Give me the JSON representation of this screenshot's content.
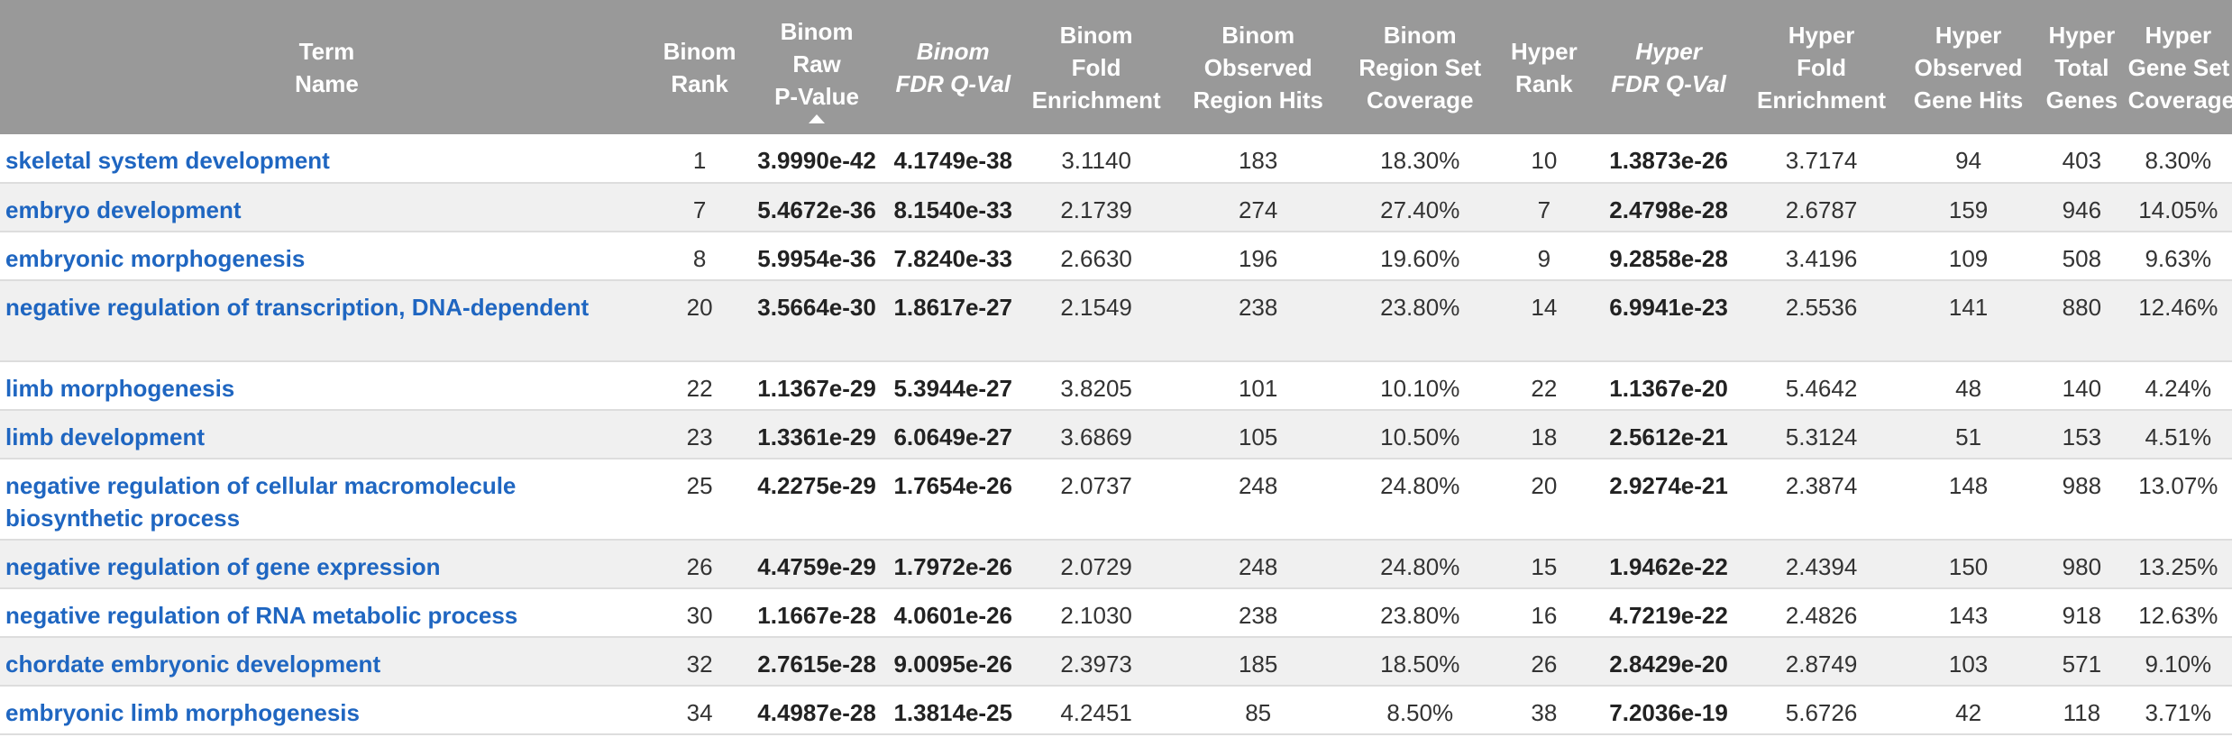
{
  "headers": {
    "term_name": [
      "Term",
      "Name"
    ],
    "binom_rank": [
      "Binom",
      "Rank"
    ],
    "binom_raw_pvalue": [
      "Binom",
      "Raw",
      "P-Value"
    ],
    "binom_fdr_qval": [
      "Binom",
      "FDR Q-Val"
    ],
    "binom_fold_enrichment": [
      "Binom",
      "Fold",
      "Enrichment"
    ],
    "binom_observed_region_hits": [
      "Binom",
      "Observed",
      "Region Hits"
    ],
    "binom_region_set_coverage": [
      "Binom",
      "Region Set",
      "Coverage"
    ],
    "hyper_rank": [
      "Hyper",
      "Rank"
    ],
    "hyper_fdr_qval": [
      "Hyper",
      "FDR Q-Val"
    ],
    "hyper_fold_enrichment": [
      "Hyper",
      "Fold",
      "Enrichment"
    ],
    "hyper_observed_gene_hits": [
      "Hyper",
      "Observed",
      "Gene Hits"
    ],
    "hyper_total_genes": [
      "Hyper",
      "Total",
      "Genes"
    ],
    "hyper_gene_set_coverage": [
      "Hyper",
      "Gene Set",
      "Coverage"
    ]
  },
  "sort": {
    "column": "binom_raw_pvalue",
    "direction": "ascending"
  },
  "colors": {
    "header_bg": "#999999",
    "link": "#1f66c1",
    "stripe": "#f0f0f0"
  },
  "rows": [
    {
      "term": "skeletal system development",
      "binom_rank": "1",
      "binom_raw_pvalue": "3.9990e-42",
      "binom_fdr_qval": "4.1749e-38",
      "binom_fold_enrichment": "3.1140",
      "binom_observed_region_hits": "183",
      "binom_region_set_coverage": "18.30%",
      "hyper_rank": "10",
      "hyper_fdr_qval": "1.3873e-26",
      "hyper_fold_enrichment": "3.7174",
      "hyper_observed_gene_hits": "94",
      "hyper_total_genes": "403",
      "hyper_gene_set_coverage": "8.30%"
    },
    {
      "term": "embryo development",
      "binom_rank": "7",
      "binom_raw_pvalue": "5.4672e-36",
      "binom_fdr_qval": "8.1540e-33",
      "binom_fold_enrichment": "2.1739",
      "binom_observed_region_hits": "274",
      "binom_region_set_coverage": "27.40%",
      "hyper_rank": "7",
      "hyper_fdr_qval": "2.4798e-28",
      "hyper_fold_enrichment": "2.6787",
      "hyper_observed_gene_hits": "159",
      "hyper_total_genes": "946",
      "hyper_gene_set_coverage": "14.05%"
    },
    {
      "term": "embryonic morphogenesis",
      "binom_rank": "8",
      "binom_raw_pvalue": "5.9954e-36",
      "binom_fdr_qval": "7.8240e-33",
      "binom_fold_enrichment": "2.6630",
      "binom_observed_region_hits": "196",
      "binom_region_set_coverage": "19.60%",
      "hyper_rank": "9",
      "hyper_fdr_qval": "9.2858e-28",
      "hyper_fold_enrichment": "3.4196",
      "hyper_observed_gene_hits": "109",
      "hyper_total_genes": "508",
      "hyper_gene_set_coverage": "9.63%"
    },
    {
      "term": "negative regulation of transcription, DNA-dependent",
      "binom_rank": "20",
      "binom_raw_pvalue": "3.5664e-30",
      "binom_fdr_qval": "1.8617e-27",
      "binom_fold_enrichment": "2.1549",
      "binom_observed_region_hits": "238",
      "binom_region_set_coverage": "23.80%",
      "hyper_rank": "14",
      "hyper_fdr_qval": "6.9941e-23",
      "hyper_fold_enrichment": "2.5536",
      "hyper_observed_gene_hits": "141",
      "hyper_total_genes": "880",
      "hyper_gene_set_coverage": "12.46%"
    },
    {
      "term": "limb morphogenesis",
      "binom_rank": "22",
      "binom_raw_pvalue": "1.1367e-29",
      "binom_fdr_qval": "5.3944e-27",
      "binom_fold_enrichment": "3.8205",
      "binom_observed_region_hits": "101",
      "binom_region_set_coverage": "10.10%",
      "hyper_rank": "22",
      "hyper_fdr_qval": "1.1367e-20",
      "hyper_fold_enrichment": "5.4642",
      "hyper_observed_gene_hits": "48",
      "hyper_total_genes": "140",
      "hyper_gene_set_coverage": "4.24%"
    },
    {
      "term": "limb development",
      "binom_rank": "23",
      "binom_raw_pvalue": "1.3361e-29",
      "binom_fdr_qval": "6.0649e-27",
      "binom_fold_enrichment": "3.6869",
      "binom_observed_region_hits": "105",
      "binom_region_set_coverage": "10.50%",
      "hyper_rank": "18",
      "hyper_fdr_qval": "2.5612e-21",
      "hyper_fold_enrichment": "5.3124",
      "hyper_observed_gene_hits": "51",
      "hyper_total_genes": "153",
      "hyper_gene_set_coverage": "4.51%"
    },
    {
      "term": "negative regulation of cellular macromolecule biosynthetic process",
      "binom_rank": "25",
      "binom_raw_pvalue": "4.2275e-29",
      "binom_fdr_qval": "1.7654e-26",
      "binom_fold_enrichment": "2.0737",
      "binom_observed_region_hits": "248",
      "binom_region_set_coverage": "24.80%",
      "hyper_rank": "20",
      "hyper_fdr_qval": "2.9274e-21",
      "hyper_fold_enrichment": "2.3874",
      "hyper_observed_gene_hits": "148",
      "hyper_total_genes": "988",
      "hyper_gene_set_coverage": "13.07%"
    },
    {
      "term": "negative regulation of gene expression",
      "binom_rank": "26",
      "binom_raw_pvalue": "4.4759e-29",
      "binom_fdr_qval": "1.7972e-26",
      "binom_fold_enrichment": "2.0729",
      "binom_observed_region_hits": "248",
      "binom_region_set_coverage": "24.80%",
      "hyper_rank": "15",
      "hyper_fdr_qval": "1.9462e-22",
      "hyper_fold_enrichment": "2.4394",
      "hyper_observed_gene_hits": "150",
      "hyper_total_genes": "980",
      "hyper_gene_set_coverage": "13.25%"
    },
    {
      "term": "negative regulation of RNA metabolic process",
      "binom_rank": "30",
      "binom_raw_pvalue": "1.1667e-28",
      "binom_fdr_qval": "4.0601e-26",
      "binom_fold_enrichment": "2.1030",
      "binom_observed_region_hits": "238",
      "binom_region_set_coverage": "23.80%",
      "hyper_rank": "16",
      "hyper_fdr_qval": "4.7219e-22",
      "hyper_fold_enrichment": "2.4826",
      "hyper_observed_gene_hits": "143",
      "hyper_total_genes": "918",
      "hyper_gene_set_coverage": "12.63%"
    },
    {
      "term": "chordate embryonic development",
      "binom_rank": "32",
      "binom_raw_pvalue": "2.7615e-28",
      "binom_fdr_qval": "9.0095e-26",
      "binom_fold_enrichment": "2.3973",
      "binom_observed_region_hits": "185",
      "binom_region_set_coverage": "18.50%",
      "hyper_rank": "26",
      "hyper_fdr_qval": "2.8429e-20",
      "hyper_fold_enrichment": "2.8749",
      "hyper_observed_gene_hits": "103",
      "hyper_total_genes": "571",
      "hyper_gene_set_coverage": "9.10%"
    },
    {
      "term": "embryonic limb morphogenesis",
      "binom_rank": "34",
      "binom_raw_pvalue": "4.4987e-28",
      "binom_fdr_qval": "1.3814e-25",
      "binom_fold_enrichment": "4.2451",
      "binom_observed_region_hits": "85",
      "binom_region_set_coverage": "8.50%",
      "hyper_rank": "38",
      "hyper_fdr_qval": "7.2036e-19",
      "hyper_fold_enrichment": "5.6726",
      "hyper_observed_gene_hits": "42",
      "hyper_total_genes": "118",
      "hyper_gene_set_coverage": "3.71%"
    }
  ]
}
